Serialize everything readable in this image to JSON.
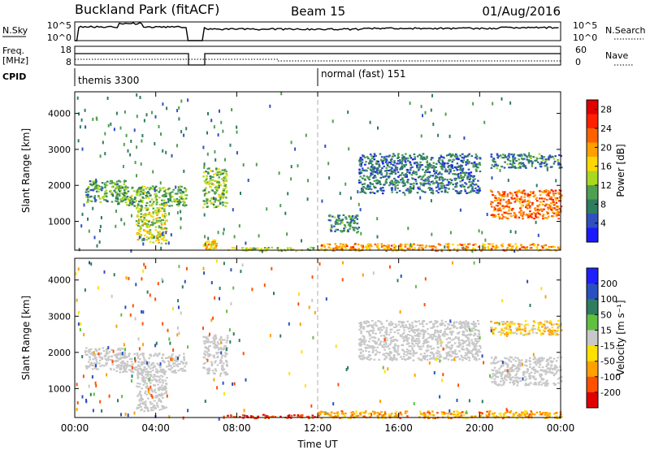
{
  "header": {
    "station": "Buckland Park (fitACF)",
    "beam": "Beam 15",
    "date": "01/Aug/2016"
  },
  "nsky_panel": {
    "left_label": "N.Sky",
    "left_ticks": [
      "10^5",
      "10^0"
    ],
    "right_label": "N.Search",
    "right_ticks": [
      "10^5",
      "10^0"
    ]
  },
  "freq_panel": {
    "left_label_1": "Freq.",
    "left_label_2": "[MHz]",
    "left_ticks": [
      "18",
      "8"
    ],
    "right_label": "Nave",
    "right_ticks": [
      "60",
      "0"
    ]
  },
  "cpid": {
    "label": "CPID",
    "segments": [
      {
        "name": "themis 3300",
        "start_h": 0
      },
      {
        "name": "normal (fast) 151",
        "start_h": 12
      }
    ]
  },
  "colors": {
    "power": [
      "#1a1aff",
      "#3050c0",
      "#2e7d5e",
      "#4fa04f",
      "#a8d820",
      "#ffd700",
      "#ffa000",
      "#ff6000",
      "#ff2000",
      "#e00000"
    ],
    "velocity": [
      "#2020ff",
      "#2a4fc0",
      "#2e7d5e",
      "#60c040",
      "#c8c8c8",
      "#ffe000",
      "#ffa000",
      "#ff5000",
      "#e00000"
    ]
  },
  "chart_data": [
    {
      "type": "heatmap",
      "ylabel": "Slant Range [km]",
      "xlabel": "",
      "x_range_h": [
        0,
        24
      ],
      "y_range_km": [
        200,
        4600
      ],
      "y_ticks": [
        "1000",
        "2000",
        "3000",
        "4000"
      ],
      "colorbar": {
        "label": "Power [dB]",
        "ticks": [
          "4",
          "8",
          "12",
          "16",
          "20",
          "24",
          "28"
        ],
        "range": [
          0,
          30
        ]
      },
      "regions": [
        {
          "t0": 0.5,
          "t1": 2.5,
          "r0": 1550,
          "r1": 2150,
          "level": 10
        },
        {
          "t0": 2.0,
          "t1": 5.5,
          "r0": 1450,
          "r1": 2000,
          "level": 11
        },
        {
          "t0": 3.0,
          "t1": 4.5,
          "r0": 400,
          "r1": 1500,
          "level": 14
        },
        {
          "t0": 6.3,
          "t1": 7.5,
          "r0": 1400,
          "r1": 2500,
          "level": 12
        },
        {
          "t0": 6.3,
          "t1": 7.0,
          "r0": 250,
          "r1": 500,
          "level": 18
        },
        {
          "t0": 7.5,
          "t1": 12,
          "r0": 200,
          "r1": 300,
          "level": 14
        },
        {
          "t0": 12,
          "t1": 24,
          "r0": 200,
          "r1": 400,
          "level": 20
        },
        {
          "t0": 12.5,
          "t1": 14,
          "r0": 700,
          "r1": 1200,
          "level": 8
        },
        {
          "t0": 14,
          "t1": 20,
          "r0": 1800,
          "r1": 2900,
          "level": 7
        },
        {
          "t0": 20.5,
          "t1": 24,
          "r0": 1100,
          "r1": 1900,
          "level": 22
        },
        {
          "t0": 20.5,
          "t1": 24,
          "r0": 2500,
          "r1": 2900,
          "level": 8
        }
      ]
    },
    {
      "type": "heatmap",
      "ylabel": "Slant Range [km]",
      "xlabel": "Time UT",
      "x_range_h": [
        0,
        24
      ],
      "x_ticks": [
        "00:00",
        "04:00",
        "08:00",
        "12:00",
        "16:00",
        "20:00",
        "00:00"
      ],
      "y_range_km": [
        200,
        4600
      ],
      "y_ticks": [
        "1000",
        "2000",
        "3000",
        "4000"
      ],
      "colorbar": {
        "label": "Velocity [m s⁻¹]",
        "ticks": [
          "200",
          "100",
          "50",
          "15",
          "-15",
          "-50",
          "-100",
          "-200"
        ],
        "range": [
          -250,
          250
        ]
      },
      "regions": [
        {
          "t0": 0.5,
          "t1": 2.5,
          "r0": 1550,
          "r1": 2150,
          "level": 0
        },
        {
          "t0": 2.0,
          "t1": 5.5,
          "r0": 1450,
          "r1": 2000,
          "level": 0
        },
        {
          "t0": 3.0,
          "t1": 4.5,
          "r0": 400,
          "r1": 1500,
          "level": 0
        },
        {
          "t0": 6.3,
          "t1": 7.5,
          "r0": 1400,
          "r1": 2500,
          "level": 0
        },
        {
          "t0": 7.5,
          "t1": 12,
          "r0": 200,
          "r1": 300,
          "level": -200
        },
        {
          "t0": 12,
          "t1": 24,
          "r0": 200,
          "r1": 400,
          "level": -70
        },
        {
          "t0": 14,
          "t1": 20,
          "r0": 1800,
          "r1": 2900,
          "level": 0
        },
        {
          "t0": 20.5,
          "t1": 24,
          "r0": 1100,
          "r1": 1900,
          "level": 0
        },
        {
          "t0": 20.5,
          "t1": 24,
          "r0": 2500,
          "r1": 2900,
          "level": -40
        }
      ]
    }
  ]
}
